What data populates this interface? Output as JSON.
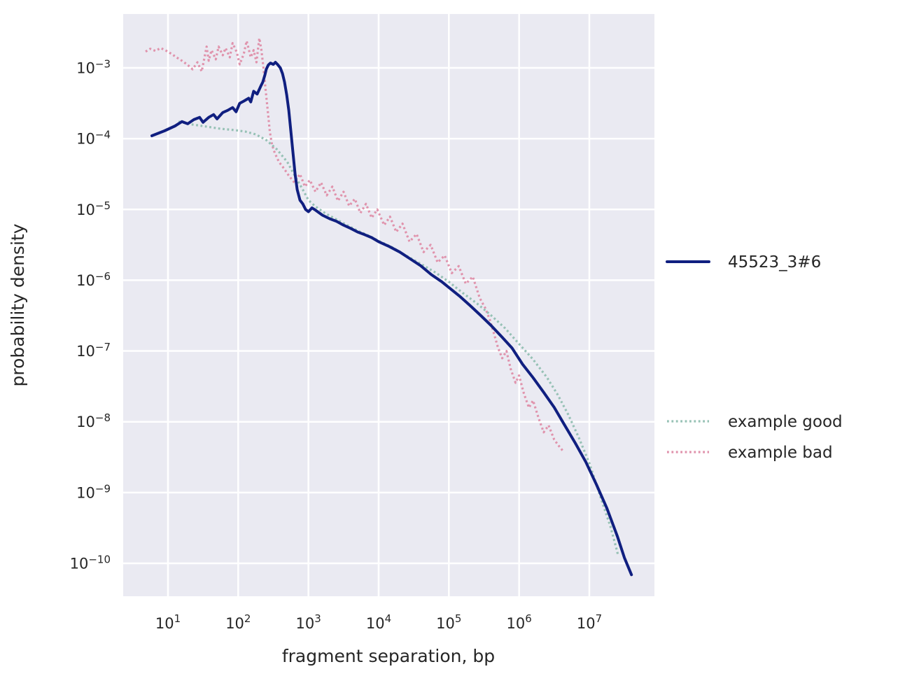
{
  "figure": {
    "background": "#ffffff",
    "plot_background": "#eaeaf2",
    "grid_color": "#ffffff",
    "text_color": "#262626",
    "legend_sample_text_color": "#333333"
  },
  "chart_data": {
    "type": "line",
    "title": "",
    "xlabel": "fragment separation, bp",
    "ylabel": "probability density",
    "xscale": "log",
    "yscale": "log",
    "grid": true,
    "legend_position": "right-outside",
    "xlim": [
      2.3,
      85000000
    ],
    "ylim": [
      3e-11,
      0.0059
    ],
    "x_tick_exponents": [
      1,
      2,
      3,
      4,
      5,
      6,
      7
    ],
    "y_tick_exponents": [
      -3,
      -4,
      -5,
      -6,
      -7,
      -8,
      -9,
      -10
    ],
    "series": [
      {
        "name": "45523_3#6",
        "color": "#101f80",
        "line_style": "solid",
        "line_width": 4,
        "points": [
          [
            5.9,
            0.00011
          ],
          [
            8.9,
            0.000129
          ],
          [
            12.6,
            0.000151
          ],
          [
            15.8,
            0.000174
          ],
          [
            19.1,
            0.000162
          ],
          [
            23.4,
            0.000186
          ],
          [
            28.2,
            0.0002
          ],
          [
            31.6,
            0.00017
          ],
          [
            38,
            0.0002
          ],
          [
            44.7,
            0.000219
          ],
          [
            50,
            0.00019
          ],
          [
            60.3,
            0.000234
          ],
          [
            70.8,
            0.000251
          ],
          [
            83.2,
            0.000275
          ],
          [
            93.3,
            0.00024
          ],
          [
            105,
            0.000316
          ],
          [
            120,
            0.000339
          ],
          [
            141,
            0.000372
          ],
          [
            151,
            0.000331
          ],
          [
            166,
            0.000468
          ],
          [
            186,
            0.000427
          ],
          [
            209,
            0.00055
          ],
          [
            224,
            0.000631
          ],
          [
            240,
            0.000794
          ],
          [
            251,
            0.000955
          ],
          [
            269,
            0.0011
          ],
          [
            288,
            0.00117
          ],
          [
            316,
            0.00112
          ],
          [
            339,
            0.0012
          ],
          [
            363,
            0.00112
          ],
          [
            398,
            0.001
          ],
          [
            427,
            0.000832
          ],
          [
            457,
            0.000631
          ],
          [
            490,
            0.000417
          ],
          [
            525,
            0.000251
          ],
          [
            562,
            0.000126
          ],
          [
            603,
            6.31e-05
          ],
          [
            646,
            3.16e-05
          ],
          [
            692,
            1.91e-05
          ],
          [
            759,
            1.35e-05
          ],
          [
            832,
            1.2e-05
          ],
          [
            912,
            1e-05
          ],
          [
            1000,
            9.3e-06
          ],
          [
            1122,
            1.05e-05
          ],
          [
            1259,
            9.8e-06
          ],
          [
            1585,
            8.3e-06
          ],
          [
            2000,
            7.4e-06
          ],
          [
            2512,
            6.8e-06
          ],
          [
            3162,
            6e-06
          ],
          [
            3981,
            5.4e-06
          ],
          [
            5012,
            4.8e-06
          ],
          [
            6310,
            4.4e-06
          ],
          [
            7943,
            4e-06
          ],
          [
            10000,
            3.5e-06
          ],
          [
            14100,
            3e-06
          ],
          [
            20000,
            2.5e-06
          ],
          [
            28200,
            2e-06
          ],
          [
            39800,
            1.6e-06
          ],
          [
            56200,
            1.2e-06
          ],
          [
            79400,
            9.5e-07
          ],
          [
            100000,
            7.9e-07
          ],
          [
            141000,
            6e-07
          ],
          [
            200000,
            4.4e-07
          ],
          [
            282000,
            3.2e-07
          ],
          [
            398000,
            2.3e-07
          ],
          [
            562000,
            1.6e-07
          ],
          [
            794000,
            1.1e-07
          ],
          [
            1120000,
            6.5e-08
          ],
          [
            1580000,
            4.2e-08
          ],
          [
            2240000,
            2.6e-08
          ],
          [
            3160000,
            1.6e-08
          ],
          [
            4470000,
            8.9e-09
          ],
          [
            6310000,
            5e-09
          ],
          [
            8910000,
            2.7e-09
          ],
          [
            12600000,
            1.3e-09
          ],
          [
            17800000,
            6e-10
          ],
          [
            25100000,
            2.4e-10
          ],
          [
            31600000,
            1.2e-10
          ],
          [
            39800000,
            6.9e-11
          ]
        ]
      },
      {
        "name": "example good",
        "color": "#96c1b5",
        "line_style": "dotted",
        "line_width": 3.2,
        "points": [
          [
            14.1,
            0.000174
          ],
          [
            22.4,
            0.000158
          ],
          [
            35.5,
            0.000148
          ],
          [
            56.2,
            0.000138
          ],
          [
            89.1,
            0.000132
          ],
          [
            126,
            0.000126
          ],
          [
            178,
            0.000115
          ],
          [
            251,
            9.55e-05
          ],
          [
            355,
            7.08e-05
          ],
          [
            501,
            4.68e-05
          ],
          [
            661,
            2.82e-05
          ],
          [
            832,
            1.91e-05
          ],
          [
            1000,
            1.35e-05
          ],
          [
            1259,
            1.1e-05
          ],
          [
            1778,
            8.7e-06
          ],
          [
            2512,
            7.2e-06
          ],
          [
            3548,
            6e-06
          ],
          [
            5012,
            5e-06
          ],
          [
            7079,
            4.3e-06
          ],
          [
            10000,
            3.6e-06
          ],
          [
            15800,
            2.9e-06
          ],
          [
            25100,
            2.2e-06
          ],
          [
            39800,
            1.7e-06
          ],
          [
            63100,
            1.3e-06
          ],
          [
            100000,
            9.5e-07
          ],
          [
            158000,
            6.6e-07
          ],
          [
            251000,
            4.7e-07
          ],
          [
            398000,
            3.2e-07
          ],
          [
            631000,
            2.1e-07
          ],
          [
            1000000,
            1.26e-07
          ],
          [
            1580000,
            7.6e-08
          ],
          [
            2510000,
            4.2e-08
          ],
          [
            3550000,
            2.4e-08
          ],
          [
            5010000,
            1.26e-08
          ],
          [
            7080000,
            6e-09
          ],
          [
            10000000,
            2.6e-09
          ],
          [
            12600000,
            1.3e-09
          ],
          [
            15800000,
            6.6e-10
          ],
          [
            20000000,
            3.3e-10
          ],
          [
            24000000,
            1.7e-10
          ],
          [
            25700000,
            1.3e-10
          ]
        ]
      },
      {
        "name": "example bad",
        "color": "#e093ac",
        "line_style": "dotted",
        "line_width": 3.2,
        "points": [
          [
            4.8,
            0.0017
          ],
          [
            5.6,
            0.00186
          ],
          [
            6.6,
            0.00174
          ],
          [
            7.9,
            0.00191
          ],
          [
            9.5,
            0.00174
          ],
          [
            11.2,
            0.00158
          ],
          [
            13.2,
            0.00141
          ],
          [
            15.8,
            0.00126
          ],
          [
            19.1,
            0.0011
          ],
          [
            22.4,
            0.000955
          ],
          [
            26.3,
            0.0012
          ],
          [
            30.2,
            0.00089
          ],
          [
            35.5,
            0.002
          ],
          [
            38,
            0.00126
          ],
          [
            41.7,
            0.00178
          ],
          [
            47.9,
            0.00132
          ],
          [
            52.5,
            0.002
          ],
          [
            60.3,
            0.00151
          ],
          [
            66.1,
            0.00191
          ],
          [
            75.9,
            0.00141
          ],
          [
            83.2,
            0.00224
          ],
          [
            95.5,
            0.00166
          ],
          [
            105,
            0.00112
          ],
          [
            120,
            0.00158
          ],
          [
            132,
            0.0024
          ],
          [
            151,
            0.00141
          ],
          [
            166,
            0.00178
          ],
          [
            182,
            0.0012
          ],
          [
            200,
            0.00263
          ],
          [
            214,
            0.00178
          ],
          [
            229,
            0.001
          ],
          [
            245,
            0.0005
          ],
          [
            263,
            0.000251
          ],
          [
            282,
            0.000126
          ],
          [
            302,
            8.3e-05
          ],
          [
            331,
            6.3e-05
          ],
          [
            380,
            4.7e-05
          ],
          [
            447,
            3.8e-05
          ],
          [
            525,
            3e-05
          ],
          [
            631,
            2.4e-05
          ],
          [
            759,
            3.16e-05
          ],
          [
            891,
            2.1e-05
          ],
          [
            1047,
            2.6e-05
          ],
          [
            1259,
            1.78e-05
          ],
          [
            1514,
            2.4e-05
          ],
          [
            1820,
            1.58e-05
          ],
          [
            2188,
            2.1e-05
          ],
          [
            2630,
            1.32e-05
          ],
          [
            3162,
            1.78e-05
          ],
          [
            3802,
            1.12e-05
          ],
          [
            4571,
            1.41e-05
          ],
          [
            5495,
            8.9e-06
          ],
          [
            6607,
            1.2e-05
          ],
          [
            7943,
            7.6e-06
          ],
          [
            9550,
            1e-05
          ],
          [
            12000,
            6e-06
          ],
          [
            14500,
            7.9e-06
          ],
          [
            17800,
            4.8e-06
          ],
          [
            21900,
            6.3e-06
          ],
          [
            27500,
            3.5e-06
          ],
          [
            34700,
            4.5e-06
          ],
          [
            43700,
            2.5e-06
          ],
          [
            55000,
            3.16e-06
          ],
          [
            69200,
            1.78e-06
          ],
          [
            87100,
            2.24e-06
          ],
          [
            110000,
            1.26e-06
          ],
          [
            138000,
            1.58e-06
          ],
          [
            174000,
            8.9e-07
          ],
          [
            219000,
            1.12e-06
          ],
          [
            275000,
            5.6e-07
          ],
          [
            331000,
            4e-07
          ],
          [
            380000,
            2.82e-07
          ],
          [
            437000,
            1.78e-07
          ],
          [
            501000,
            1.12e-07
          ],
          [
            575000,
            7.9e-08
          ],
          [
            661000,
            1e-07
          ],
          [
            759000,
            5.6e-08
          ],
          [
            891000,
            3.55e-08
          ],
          [
            1000000,
            4.5e-08
          ],
          [
            1170000,
            2.51e-08
          ],
          [
            1380000,
            1.58e-08
          ],
          [
            1580000,
            2e-08
          ],
          [
            1900000,
            1.12e-08
          ],
          [
            2240000,
            7.1e-09
          ],
          [
            2630000,
            8.9e-09
          ],
          [
            3160000,
            5.6e-09
          ],
          [
            3720000,
            4.5e-09
          ],
          [
            4270000,
            3.8e-09
          ]
        ]
      }
    ]
  }
}
